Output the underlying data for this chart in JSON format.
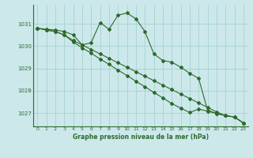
{
  "hours": [
    0,
    1,
    2,
    3,
    4,
    5,
    6,
    7,
    8,
    9,
    10,
    11,
    12,
    13,
    14,
    15,
    16,
    17,
    18,
    19,
    20,
    21,
    22,
    23
  ],
  "line1": [
    1030.8,
    1030.75,
    1030.72,
    1030.65,
    1030.5,
    1030.05,
    1030.15,
    1031.05,
    1030.75,
    1031.38,
    1031.48,
    1031.22,
    1030.65,
    1029.65,
    1029.35,
    1029.28,
    1029.05,
    1028.78,
    1028.55,
    1027.12,
    1026.98,
    1026.88,
    1026.82,
    1026.55
  ],
  "line2": [
    1030.8,
    1030.72,
    1030.65,
    1030.5,
    1030.25,
    1030.05,
    1029.85,
    1029.65,
    1029.45,
    1029.25,
    1029.05,
    1028.85,
    1028.65,
    1028.45,
    1028.25,
    1028.05,
    1027.85,
    1027.65,
    1027.45,
    1027.25,
    1027.05,
    1026.88,
    1026.82,
    1026.55
  ],
  "line3": [
    1030.8,
    1030.72,
    1030.65,
    1030.5,
    1030.18,
    1029.92,
    1029.68,
    1029.42,
    1029.18,
    1028.92,
    1028.68,
    1028.42,
    1028.18,
    1027.92,
    1027.68,
    1027.42,
    1027.22,
    1027.02,
    1027.18,
    1027.08,
    1026.98,
    1026.88,
    1026.82,
    1026.55
  ],
  "line_color": "#2d6a2d",
  "bg_color": "#cce8ea",
  "grid_color": "#9ecdd0",
  "title": "Graphe pression niveau de la mer (hPa)",
  "ylim_min": 1026.4,
  "ylim_max": 1031.85,
  "yticks": [
    1027,
    1028,
    1029,
    1030,
    1031
  ],
  "xticks": [
    0,
    1,
    2,
    3,
    4,
    5,
    6,
    7,
    8,
    9,
    10,
    11,
    12,
    13,
    14,
    15,
    16,
    17,
    18,
    19,
    20,
    21,
    22,
    23
  ]
}
